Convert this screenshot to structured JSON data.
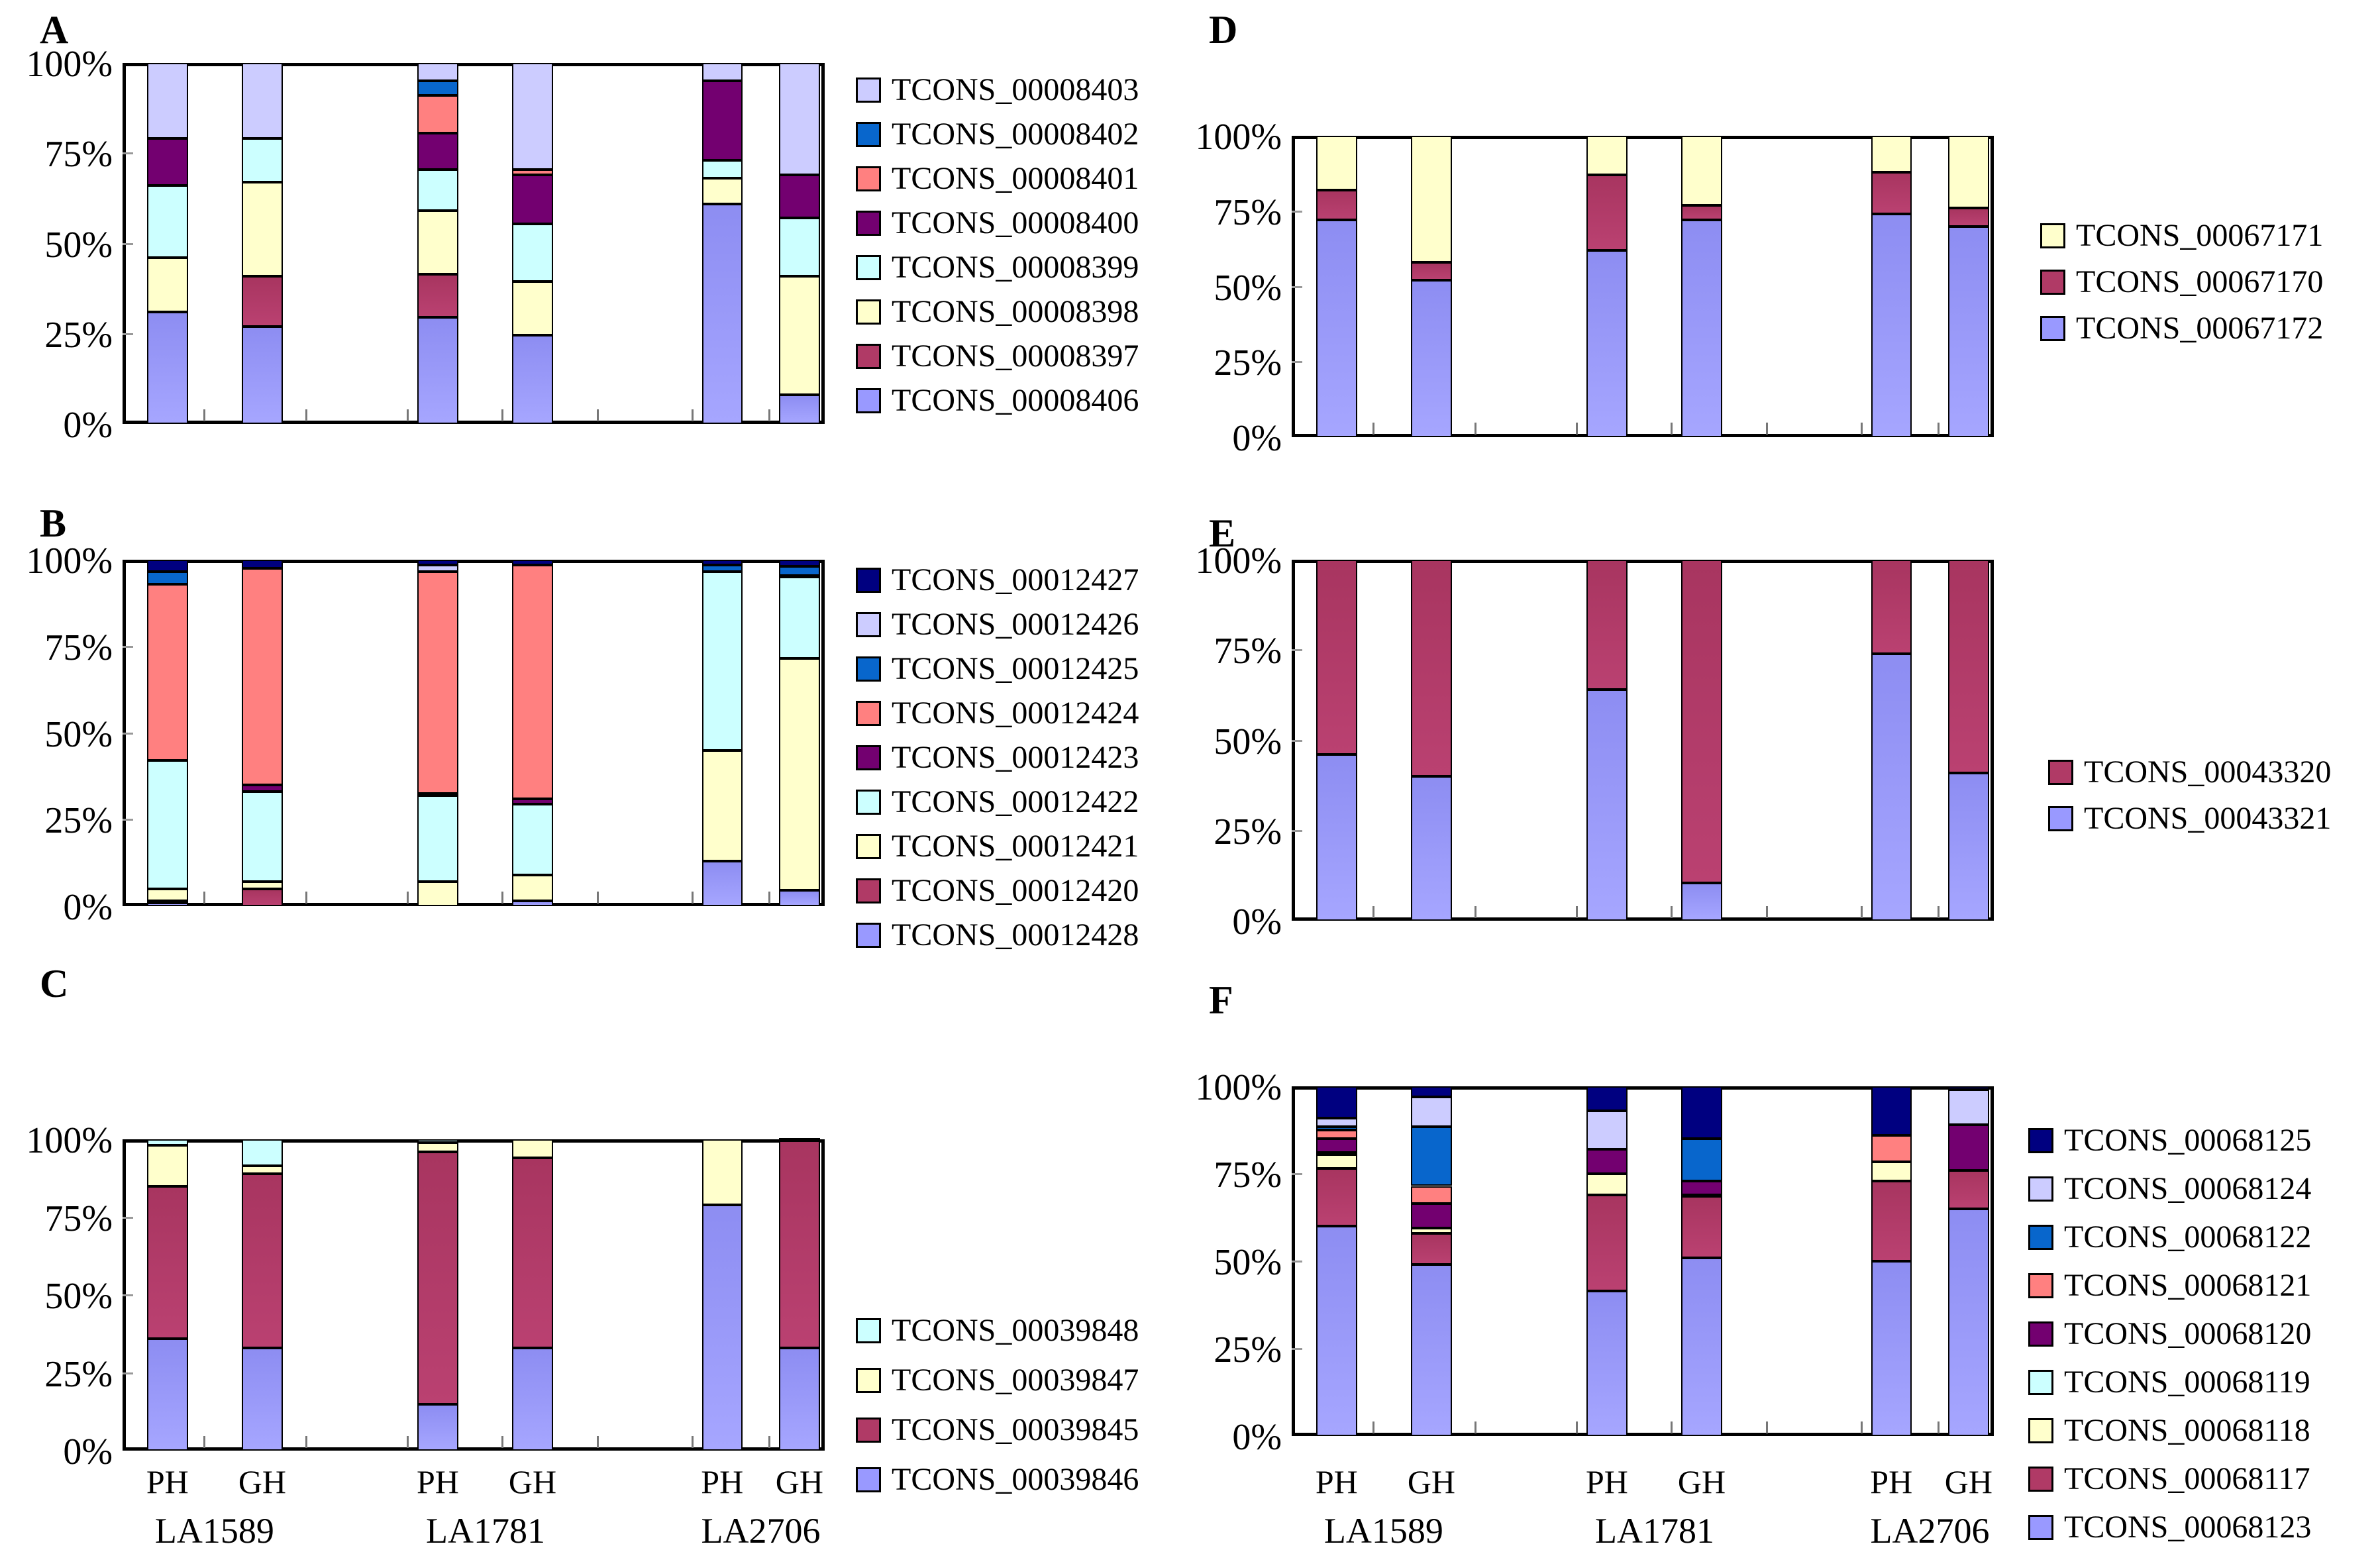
{
  "figure": {
    "y_axis_labels": [
      "100%",
      "75%",
      "50%",
      "25%",
      "0%"
    ],
    "x_axis": {
      "replicate_labels": [
        "PH",
        "GH"
      ],
      "group_labels": [
        "LA1589",
        "LA1781",
        "LA2706"
      ]
    },
    "palette": {
      "periwinkle": "#9999FF",
      "maroon": "#B03A66",
      "pale_yellow": "#FFFFCC",
      "cyan": "#CCFFFF",
      "dark_purple": "#730070",
      "salmon": "#FF8080",
      "blue": "#0866CC",
      "lavender": "#CCCCFF",
      "navy": "#000080"
    }
  },
  "chart_data": [
    {
      "panel": "A",
      "type": "bar",
      "stacked": true,
      "unit": "percent",
      "ylim": [
        0,
        100
      ],
      "categories": [
        "LA1589 PH",
        "LA1589 GH",
        "LA1781 PH",
        "LA1781 GH",
        "LA2706 PH",
        "LA2706 GH"
      ],
      "series": [
        {
          "name": "TCONS_00008406",
          "color": "#9999FF",
          "values": [
            31,
            27,
            29.5,
            24.5,
            61,
            8
          ]
        },
        {
          "name": "TCONS_00008397",
          "color": "#B03A66",
          "values": [
            0,
            14,
            12,
            0,
            0,
            0
          ]
        },
        {
          "name": "TCONS_00008398",
          "color": "#FFFFCC",
          "values": [
            15,
            26,
            17.5,
            15,
            7,
            33
          ]
        },
        {
          "name": "TCONS_00008399",
          "color": "#CCFFFF",
          "values": [
            20,
            12,
            11.5,
            16,
            5,
            16
          ]
        },
        {
          "name": "TCONS_00008400",
          "color": "#730070",
          "values": [
            13,
            0,
            10,
            13.5,
            22,
            12
          ]
        },
        {
          "name": "TCONS_00008401",
          "color": "#FF8080",
          "values": [
            0,
            0,
            10.5,
            1.5,
            0,
            0
          ]
        },
        {
          "name": "TCONS_00008402",
          "color": "#0866CC",
          "values": [
            0,
            0,
            4,
            0,
            0,
            0
          ]
        },
        {
          "name": "TCONS_00008403",
          "color": "#CCCCFF",
          "values": [
            21,
            21,
            5,
            29.5,
            5,
            31
          ]
        }
      ],
      "legend_top_to_bottom": [
        "TCONS_00008403",
        "TCONS_00008402",
        "TCONS_00008401",
        "TCONS_00008400",
        "TCONS_00008399",
        "TCONS_00008398",
        "TCONS_00008397",
        "TCONS_00008406"
      ]
    },
    {
      "panel": "B",
      "type": "bar",
      "stacked": true,
      "unit": "percent",
      "ylim": [
        0,
        100
      ],
      "categories": [
        "LA1589 PH",
        "LA1589 GH",
        "LA1781 PH",
        "LA1781 GH",
        "LA2706 PH",
        "LA2706 GH"
      ],
      "series": [
        {
          "name": "TCONS_00012428",
          "color": "#9999FF",
          "values": [
            1,
            0,
            0,
            1.5,
            13,
            4.5
          ]
        },
        {
          "name": "TCONS_00012420",
          "color": "#B03A66",
          "values": [
            0.5,
            5,
            0,
            0,
            0,
            0
          ]
        },
        {
          "name": "TCONS_00012421",
          "color": "#FFFFCC",
          "values": [
            3.5,
            2,
            7,
            7.5,
            32,
            67
          ]
        },
        {
          "name": "TCONS_00012422",
          "color": "#CCFFFF",
          "values": [
            37,
            26,
            25,
            20.5,
            51.5,
            23.5
          ]
        },
        {
          "name": "TCONS_00012423",
          "color": "#730070",
          "values": [
            0,
            2,
            0.5,
            1.5,
            0,
            0.5
          ]
        },
        {
          "name": "TCONS_00012424",
          "color": "#FF8080",
          "values": [
            51,
            62.5,
            64,
            67.5,
            0,
            0
          ]
        },
        {
          "name": "TCONS_00012425",
          "color": "#0866CC",
          "values": [
            3.5,
            0,
            0,
            0,
            2,
            2.5
          ]
        },
        {
          "name": "TCONS_00012426",
          "color": "#CCCCFF",
          "values": [
            0,
            0,
            2,
            0,
            0,
            0
          ]
        },
        {
          "name": "TCONS_00012427",
          "color": "#000080",
          "values": [
            3.5,
            2.5,
            1.5,
            1.5,
            1.5,
            2
          ]
        }
      ],
      "legend_top_to_bottom": [
        "TCONS_00012427",
        "TCONS_00012426",
        "TCONS_00012425",
        "TCONS_00012424",
        "TCONS_00012423",
        "TCONS_00012422",
        "TCONS_00012421",
        "TCONS_00012420",
        "TCONS_00012428"
      ]
    },
    {
      "panel": "C",
      "type": "bar",
      "stacked": true,
      "unit": "percent",
      "ylim": [
        0,
        100
      ],
      "categories": [
        "LA1589 PH",
        "LA1589 GH",
        "LA1781 PH",
        "LA1781 GH",
        "LA2706 PH",
        "LA2706 GH"
      ],
      "series": [
        {
          "name": "TCONS_00039846",
          "color": "#9999FF",
          "values": [
            36,
            33,
            15,
            33,
            79,
            33
          ]
        },
        {
          "name": "TCONS_00039845",
          "color": "#B03A66",
          "values": [
            49,
            56,
            81,
            61,
            0,
            66.5
          ]
        },
        {
          "name": "TCONS_00039847",
          "color": "#FFFFCC",
          "values": [
            13,
            2.5,
            3,
            6,
            21,
            0
          ]
        },
        {
          "name": "TCONS_00039848",
          "color": "#CCFFFF",
          "values": [
            2,
            8.5,
            1,
            0,
            0,
            0.5
          ]
        }
      ],
      "legend_top_to_bottom": [
        "TCONS_00039848",
        "TCONS_00039847",
        "TCONS_00039845",
        "TCONS_00039846"
      ]
    },
    {
      "panel": "D",
      "type": "bar",
      "stacked": true,
      "unit": "percent",
      "ylim": [
        0,
        100
      ],
      "categories": [
        "LA1589 PH",
        "LA1589 GH",
        "LA1781 PH",
        "LA1781 GH",
        "LA2706 PH",
        "LA2706 GH"
      ],
      "series": [
        {
          "name": "TCONS_00067172",
          "color": "#9999FF",
          "values": [
            72,
            52,
            62,
            72,
            74,
            70
          ]
        },
        {
          "name": "TCONS_00067170",
          "color": "#B03A66",
          "values": [
            10,
            6,
            25,
            5,
            14,
            6
          ]
        },
        {
          "name": "TCONS_00067171",
          "color": "#FFFFCC",
          "values": [
            18,
            42,
            13,
            23,
            12,
            24
          ]
        }
      ],
      "legend_top_to_bottom": [
        "TCONS_00067171",
        "TCONS_00067170",
        "TCONS_00067172"
      ]
    },
    {
      "panel": "E",
      "type": "bar",
      "stacked": true,
      "unit": "percent",
      "ylim": [
        0,
        100
      ],
      "categories": [
        "LA1589 PH",
        "LA1589 GH",
        "LA1781 PH",
        "LA1781 GH",
        "LA2706 PH",
        "LA2706 GH"
      ],
      "series": [
        {
          "name": "TCONS_00043321",
          "color": "#9999FF",
          "values": [
            46,
            40,
            64,
            10.5,
            74,
            41
          ]
        },
        {
          "name": "TCONS_00043320",
          "color": "#B03A66",
          "values": [
            54,
            60,
            36,
            89.5,
            26,
            59
          ]
        }
      ],
      "legend_top_to_bottom": [
        "TCONS_00043320",
        "TCONS_00043321"
      ]
    },
    {
      "panel": "F",
      "type": "bar",
      "stacked": true,
      "unit": "percent",
      "ylim": [
        0,
        100
      ],
      "categories": [
        "LA1589 PH",
        "LA1589 GH",
        "LA1781 PH",
        "LA1781 GH",
        "LA2706 PH",
        "LA2706 GH"
      ],
      "series": [
        {
          "name": "TCONS_00068123",
          "color": "#9999FF",
          "values": [
            60,
            49,
            41.5,
            51,
            50,
            65
          ]
        },
        {
          "name": "TCONS_00068117",
          "color": "#B03A66",
          "values": [
            16.5,
            9,
            27.5,
            17.5,
            23,
            11
          ]
        },
        {
          "name": "TCONS_00068118",
          "color": "#FFFFCC",
          "values": [
            4,
            1.5,
            6,
            0.5,
            5.5,
            0
          ]
        },
        {
          "name": "TCONS_00068119",
          "color": "#CCFFFF",
          "values": [
            0.5,
            0,
            0,
            0,
            0,
            0
          ]
        },
        {
          "name": "TCONS_00068120",
          "color": "#730070",
          "values": [
            4,
            7,
            7,
            4,
            0,
            13
          ]
        },
        {
          "name": "TCONS_00068121",
          "color": "#FF8080",
          "values": [
            2.5,
            5,
            0,
            0,
            7.5,
            0
          ]
        },
        {
          "name": "TCONS_00068122",
          "color": "#0866CC",
          "values": [
            1,
            17,
            0,
            12,
            0,
            0
          ]
        },
        {
          "name": "TCONS_00068124",
          "color": "#CCCCFF",
          "values": [
            2.5,
            8.5,
            11,
            0,
            0,
            10
          ]
        },
        {
          "name": "TCONS_00068125",
          "color": "#000080",
          "values": [
            9,
            3,
            7,
            15,
            14,
            1
          ]
        }
      ],
      "legend_top_to_bottom": [
        "TCONS_00068125",
        "TCONS_00068124",
        "TCONS_00068122",
        "TCONS_00068121",
        "TCONS_00068120",
        "TCONS_00068119",
        "TCONS_00068118",
        "TCONS_00068117",
        "TCONS_00068123"
      ]
    }
  ]
}
